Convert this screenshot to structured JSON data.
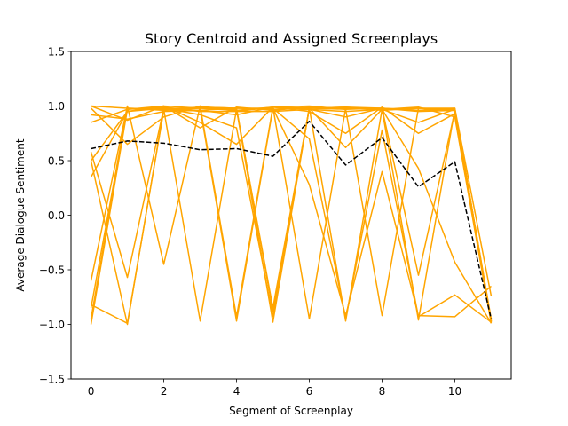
{
  "chart_data": {
    "type": "line",
    "title": "Story Centroid and Assigned Screenplays",
    "xlabel": "Segment of Screenplay",
    "ylabel": "Average Dialogue Sentiment",
    "xlim": [
      -0.55,
      11.55
    ],
    "ylim": [
      -1.5,
      1.5
    ],
    "xticks": [
      0,
      2,
      4,
      6,
      8,
      10
    ],
    "xtick_labels": [
      "0",
      "2",
      "4",
      "6",
      "8",
      "10"
    ],
    "yticks": [
      -1.5,
      -1.0,
      -0.5,
      0.0,
      0.5,
      1.0,
      1.5
    ],
    "ytick_labels": [
      "−1.5",
      "−1.0",
      "−0.5",
      "0.0",
      "0.5",
      "1.0",
      "1.5"
    ],
    "grid": false,
    "legend": "none",
    "x": [
      0,
      1,
      2,
      3,
      4,
      5,
      6,
      7,
      8,
      9,
      10,
      11
    ],
    "series": [
      {
        "role": "member",
        "color": "#ffa500",
        "values": [
          1.0,
          0.98,
          0.97,
          0.99,
          0.98,
          0.97,
          0.99,
          0.98,
          0.97,
          0.98,
          0.97,
          -0.98
        ]
      },
      {
        "role": "member",
        "color": "#ffa500",
        "values": [
          0.92,
          0.88,
          0.95,
          0.96,
          0.92,
          0.99,
          1.0,
          0.97,
          0.98,
          0.96,
          0.97,
          -0.95
        ]
      },
      {
        "role": "member",
        "color": "#ffa500",
        "values": [
          0.85,
          0.97,
          0.99,
          0.95,
          0.95,
          0.99,
          0.97,
          0.95,
          0.97,
          0.85,
          0.97,
          -0.97
        ]
      },
      {
        "role": "member",
        "color": "#ffa500",
        "values": [
          0.35,
          0.95,
          0.98,
          0.98,
          0.96,
          0.99,
          0.98,
          0.99,
          0.98,
          0.95,
          0.96,
          -0.98
        ]
      },
      {
        "role": "member",
        "color": "#ffa500",
        "values": [
          0.5,
          0.95,
          1.0,
          0.8,
          0.99,
          0.96,
          0.99,
          0.98,
          0.97,
          0.99,
          0.9,
          -0.99
        ]
      },
      {
        "role": "member",
        "color": "#ffa500",
        "values": [
          1.0,
          0.87,
          1.0,
          0.85,
          0.65,
          0.99,
          0.95,
          0.75,
          0.99,
          0.75,
          0.93,
          -0.97
        ]
      },
      {
        "role": "member",
        "color": "#ffa500",
        "values": [
          0.98,
          0.65,
          0.9,
          1.0,
          0.95,
          0.95,
          0.97,
          0.9,
          0.98,
          0.96,
          0.98,
          -0.97
        ]
      },
      {
        "role": "member",
        "color": "#ffa500",
        "values": [
          0.58,
          -0.57,
          0.98,
          0.92,
          0.8,
          -0.93,
          0.98,
          0.97,
          -0.92,
          0.98,
          0.97,
          -0.96
        ]
      },
      {
        "role": "member",
        "color": "#ffa500",
        "values": [
          -0.6,
          1.0,
          -0.45,
          1.0,
          -0.93,
          0.99,
          -0.95,
          0.98,
          0.98,
          -0.55,
          0.95,
          -0.97
        ]
      },
      {
        "role": "member",
        "color": "#ffa500",
        "values": [
          -0.85,
          0.98,
          0.97,
          -0.97,
          0.97,
          -0.85,
          0.98,
          -0.97,
          0.97,
          -0.96,
          0.97,
          -0.97
        ]
      },
      {
        "role": "member",
        "color": "#ffa500",
        "values": [
          -0.95,
          0.98,
          0.96,
          0.98,
          -0.97,
          0.98,
          0.28,
          -0.92,
          0.4,
          -0.92,
          -0.93,
          -0.65
        ]
      },
      {
        "role": "member",
        "color": "#ffa500",
        "values": [
          -1.0,
          0.97,
          1.0,
          0.98,
          0.97,
          -0.98,
          0.98,
          0.62,
          0.97,
          0.43,
          -0.43,
          -0.99
        ]
      },
      {
        "role": "member",
        "color": "#ffa500",
        "values": [
          -0.82,
          -0.99,
          0.96,
          0.99,
          0.98,
          0.98,
          0.7,
          -0.95,
          0.78,
          -0.93,
          -0.73,
          -0.98
        ]
      },
      {
        "role": "member",
        "color": "#ffa500",
        "values": [
          0.5,
          -1.0,
          0.97,
          0.96,
          0.98,
          -0.88,
          0.98,
          0.99,
          0.96,
          0.98,
          0.98,
          -0.74
        ]
      },
      {
        "role": "centroid",
        "color": "#000000",
        "dashed": true,
        "values": [
          0.61,
          0.68,
          0.66,
          0.6,
          0.61,
          0.54,
          0.86,
          0.46,
          0.71,
          0.26,
          0.49,
          -0.95
        ]
      }
    ]
  }
}
